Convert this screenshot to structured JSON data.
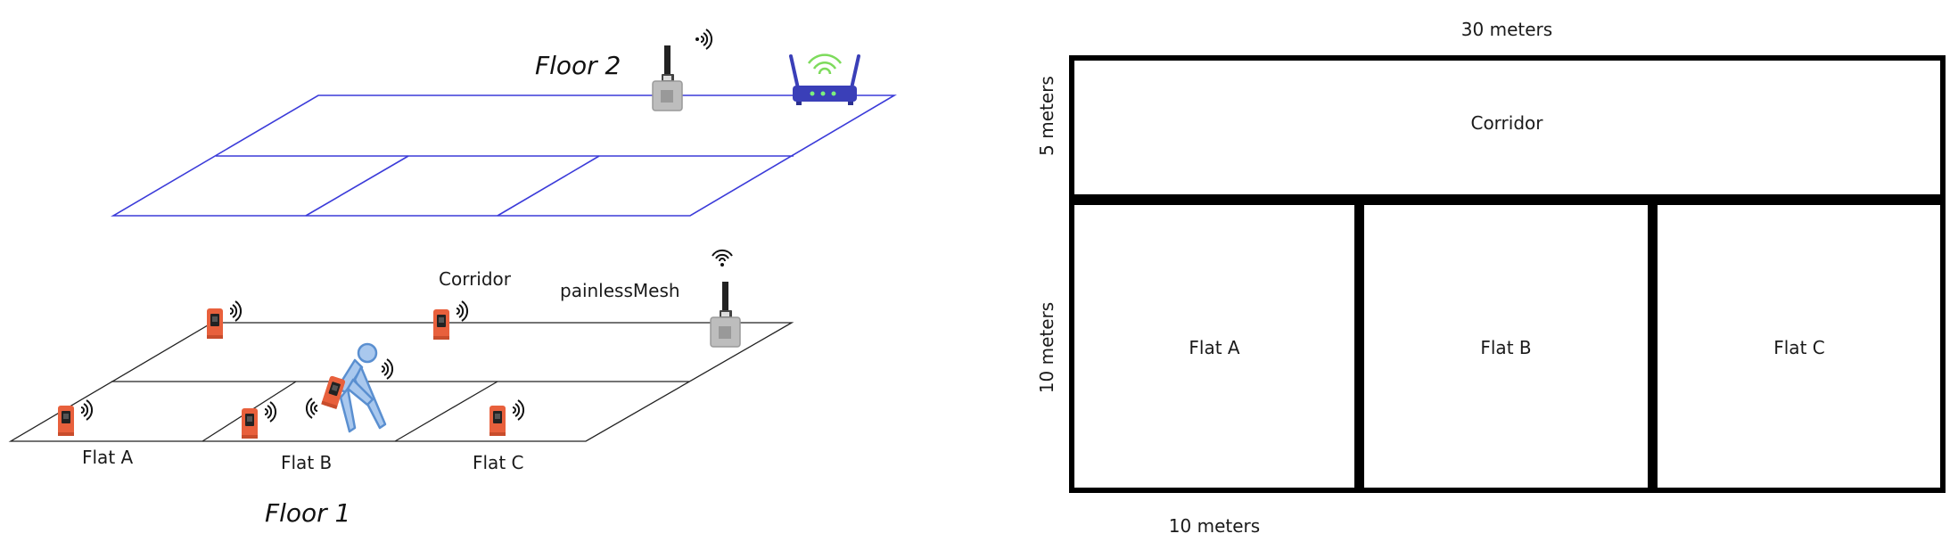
{
  "perspective": {
    "floor2_title": "Floor 2",
    "floor1_title": "Floor 1",
    "floor2_outline_color": "#3b3bd9",
    "floor1_outline_color": "#222222",
    "floor1_labels": {
      "corridor": "Corridor",
      "mesh": "painlessMesh",
      "flat_a": "Flat A",
      "flat_b": "Flat B",
      "flat_c": "Flat C"
    },
    "icons": [
      "gateway-node-icon",
      "wifi-router-icon",
      "sensor-node-icon",
      "falling-person-icon",
      "wireless-signal-icon"
    ],
    "sensor_color": "#e8603c",
    "router_color": "#3a3fb8"
  },
  "floor_plan": {
    "width_label": "30 meters",
    "corridor_height_label": "5 meters",
    "flat_height_label": "10 meters",
    "flat_width_label": "10 meters",
    "rooms": {
      "corridor": "Corridor",
      "flat_a": "Flat A",
      "flat_b": "Flat B",
      "flat_c": "Flat C"
    }
  }
}
